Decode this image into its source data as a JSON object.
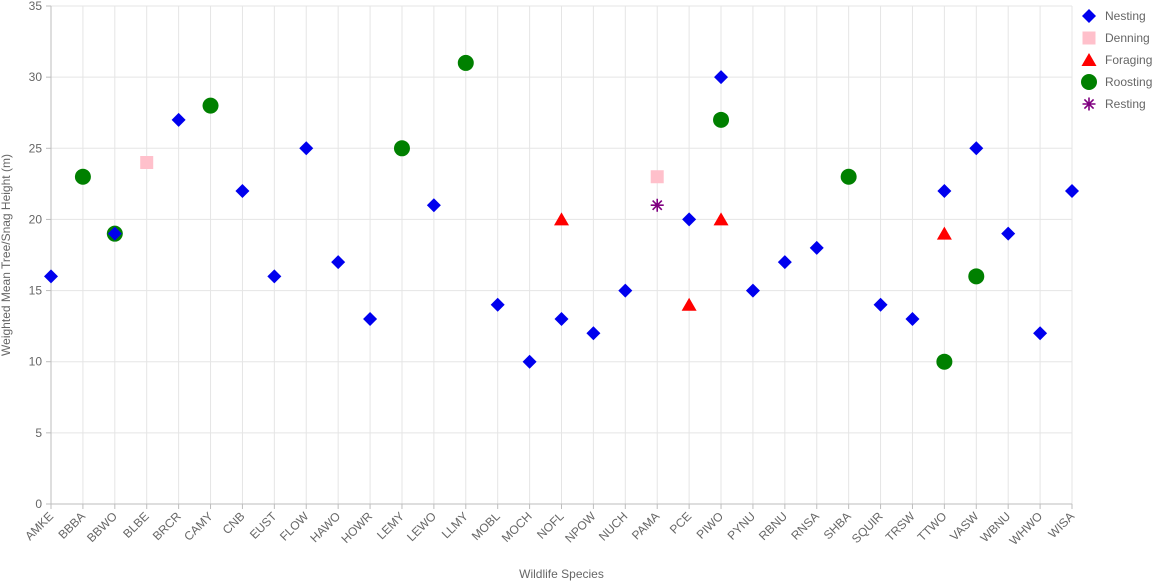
{
  "chart_data": {
    "type": "scatter",
    "xlabel": "Wildlife Species",
    "ylabel": "Weighted Mean Tree/Snag Height (m)",
    "ylim": [
      0,
      35
    ],
    "yticks": [
      0,
      5,
      10,
      15,
      20,
      25,
      30,
      35
    ],
    "grid": true,
    "legend_position": "top-right",
    "categories": [
      "AMKE",
      "BBBA",
      "BBWO",
      "BLBE",
      "BRCR",
      "CAMY",
      "CNB",
      "EUST",
      "FLOW",
      "HAWO",
      "HOWR",
      "LEMY",
      "LEWO",
      "LLMY",
      "MOBL",
      "MOCH",
      "NOFL",
      "NPOW",
      "NUCH",
      "PAMA",
      "PCE",
      "PIWO",
      "PYNU",
      "RBNU",
      "RNSA",
      "SHBA",
      "SQUIR",
      "TRSW",
      "TTWO",
      "VASW",
      "WBNU",
      "WHWO",
      "WISA"
    ],
    "series": [
      {
        "name": "Nesting",
        "marker": "diamond",
        "color": "#0000ee",
        "points": [
          {
            "x": "AMKE",
            "y": 16
          },
          {
            "x": "BBWO",
            "y": 19
          },
          {
            "x": "BRCR",
            "y": 27
          },
          {
            "x": "CNB",
            "y": 22
          },
          {
            "x": "EUST",
            "y": 16
          },
          {
            "x": "FLOW",
            "y": 25
          },
          {
            "x": "HAWO",
            "y": 17
          },
          {
            "x": "HOWR",
            "y": 13
          },
          {
            "x": "LEWO",
            "y": 21
          },
          {
            "x": "MOBL",
            "y": 14
          },
          {
            "x": "MOCH",
            "y": 10
          },
          {
            "x": "NOFL",
            "y": 13
          },
          {
            "x": "NPOW",
            "y": 12
          },
          {
            "x": "NUCH",
            "y": 15
          },
          {
            "x": "PCE",
            "y": 20
          },
          {
            "x": "PIWO",
            "y": 30
          },
          {
            "x": "PYNU",
            "y": 15
          },
          {
            "x": "RBNU",
            "y": 17
          },
          {
            "x": "RNSA",
            "y": 18
          },
          {
            "x": "SQUIR",
            "y": 14
          },
          {
            "x": "TRSW",
            "y": 13
          },
          {
            "x": "TTWO",
            "y": 22
          },
          {
            "x": "VASW",
            "y": 25
          },
          {
            "x": "WBNU",
            "y": 19
          },
          {
            "x": "WHWO",
            "y": 12
          },
          {
            "x": "WISA",
            "y": 22
          }
        ]
      },
      {
        "name": "Denning",
        "marker": "square",
        "color": "#ffc0cb",
        "points": [
          {
            "x": "BLBE",
            "y": 24
          },
          {
            "x": "PAMA",
            "y": 23
          }
        ]
      },
      {
        "name": "Foraging",
        "marker": "triangle",
        "color": "#ff0000",
        "points": [
          {
            "x": "NOFL",
            "y": 20
          },
          {
            "x": "PCE",
            "y": 14
          },
          {
            "x": "PIWO",
            "y": 20
          },
          {
            "x": "TTWO",
            "y": 19
          }
        ]
      },
      {
        "name": "Roosting",
        "marker": "circle",
        "color": "#008000",
        "points": [
          {
            "x": "BBBA",
            "y": 23
          },
          {
            "x": "BBWO",
            "y": 19
          },
          {
            "x": "CAMY",
            "y": 28
          },
          {
            "x": "LEMY",
            "y": 25
          },
          {
            "x": "LLMY",
            "y": 31
          },
          {
            "x": "PIWO",
            "y": 27
          },
          {
            "x": "SHBA",
            "y": 23
          },
          {
            "x": "TTWO",
            "y": 10
          },
          {
            "x": "VASW",
            "y": 16
          }
        ]
      },
      {
        "name": "Resting",
        "marker": "asterisk",
        "color": "#800080",
        "points": [
          {
            "x": "PAMA",
            "y": 21
          }
        ]
      }
    ]
  }
}
